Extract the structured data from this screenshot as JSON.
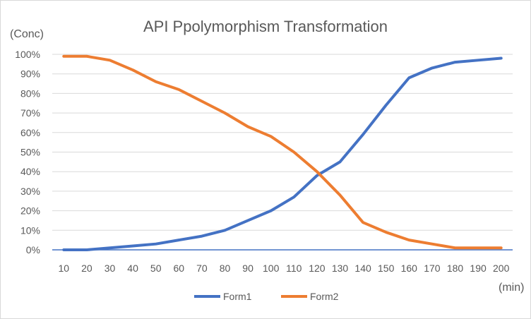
{
  "chart_data": {
    "type": "line",
    "title": "API Ppolymorphism Transformation",
    "xlabel": "(min)",
    "ylabel": "(Conc)",
    "categories": [
      "10",
      "20",
      "30",
      "40",
      "50",
      "60",
      "70",
      "80",
      "90",
      "100",
      "110",
      "120",
      "130",
      "140",
      "150",
      "160",
      "170",
      "180",
      "190",
      "200"
    ],
    "yticks": [
      "0%",
      "10%",
      "20%",
      "30%",
      "40%",
      "50%",
      "60%",
      "70%",
      "80%",
      "90%",
      "100%"
    ],
    "ylim": [
      0,
      1
    ],
    "grid": true,
    "legend": "bottom",
    "series": [
      {
        "name": "Form1",
        "color": "#4472c4",
        "values": [
          0,
          0,
          0.01,
          0.02,
          0.03,
          0.05,
          0.07,
          0.1,
          0.15,
          0.2,
          0.27,
          0.38,
          0.45,
          0.59,
          0.74,
          0.88,
          0.93,
          0.96,
          0.97,
          0.98
        ]
      },
      {
        "name": "Form2",
        "color": "#ed7d31",
        "values": [
          0.99,
          0.99,
          0.97,
          0.92,
          0.86,
          0.82,
          0.76,
          0.7,
          0.63,
          0.58,
          0.5,
          0.4,
          0.28,
          0.14,
          0.09,
          0.05,
          0.03,
          0.01,
          0.01,
          0.01
        ]
      }
    ]
  }
}
